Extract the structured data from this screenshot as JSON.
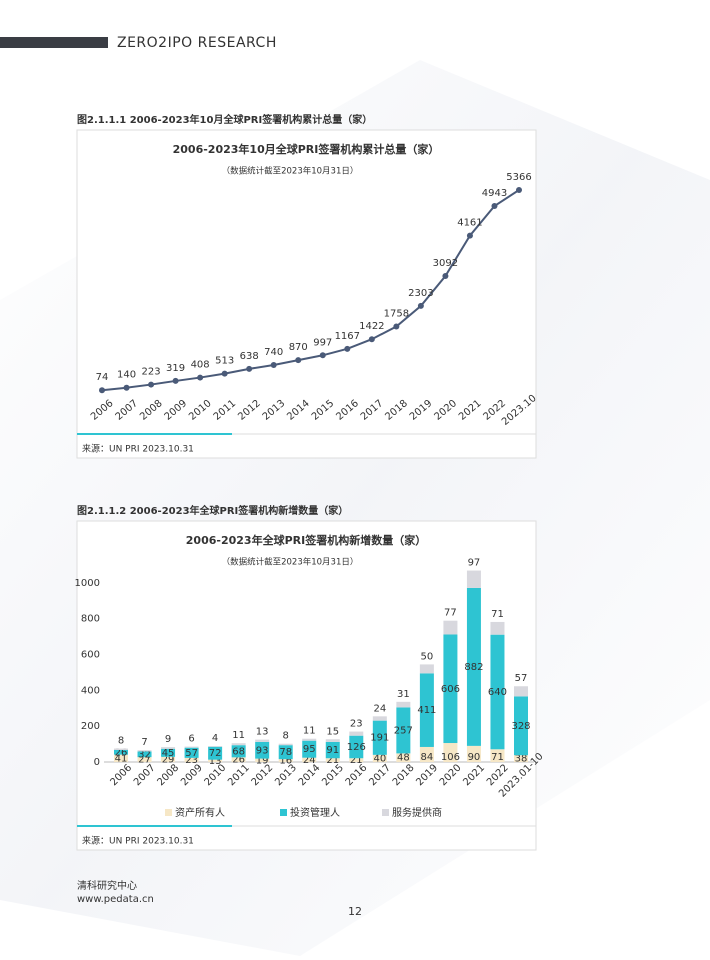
{
  "header": {
    "title": "ZERO2IPO RESEARCH"
  },
  "chart_data": [
    {
      "type": "line",
      "caption": "图2.1.1.1 2006-2023年10月全球PRI签署机构累计总量（家）",
      "title": "2006-2023年10月全球PRI签署机构累计总量（家）",
      "subtitle": "（数据统计截至2023年10月31日）",
      "categories": [
        "2006",
        "2007",
        "2008",
        "2009",
        "2010",
        "2011",
        "2012",
        "2013",
        "2014",
        "2015",
        "2016",
        "2017",
        "2018",
        "2019",
        "2020",
        "2021",
        "2022",
        "2023.10"
      ],
      "values": [
        74,
        140,
        223,
        319,
        408,
        513,
        638,
        740,
        870,
        997,
        1167,
        1422,
        1758,
        2303,
        3092,
        4161,
        4943,
        5366
      ],
      "color": "#4a5a78",
      "source": "来源：UN PRI 2023.10.31"
    },
    {
      "type": "bar",
      "stacked": true,
      "caption": "图2.1.1.2 2006-2023年全球PRI签署机构新增数量（家）",
      "title": "2006-2023年全球PRI签署机构新增数量（家）",
      "subtitle": "（数据统计截至2023年10月31日）",
      "categories": [
        "2006",
        "2007",
        "2008",
        "2009",
        "2010",
        "2011",
        "2012",
        "2013",
        "2014",
        "2015",
        "2016",
        "2017",
        "2018",
        "2019",
        "2020",
        "2021",
        "2022",
        "2023.01-10"
      ],
      "series": [
        {
          "name": "资产所有人",
          "color": "#f6e7c6",
          "values": [
            41,
            27,
            29,
            23,
            13,
            26,
            19,
            16,
            24,
            21,
            21,
            40,
            48,
            84,
            106,
            90,
            71,
            38
          ]
        },
        {
          "name": "投资管理人",
          "color": "#2ec4d2",
          "values": [
            26,
            32,
            45,
            57,
            72,
            68,
            93,
            78,
            95,
            91,
            126,
            191,
            257,
            411,
            606,
            882,
            640,
            328
          ]
        },
        {
          "name": "服务提供商",
          "color": "#d8d8de",
          "values": [
            8,
            7,
            9,
            6,
            4,
            11,
            13,
            8,
            11,
            15,
            23,
            24,
            31,
            50,
            77,
            97,
            71,
            57
          ]
        }
      ],
      "ylim": [
        0,
        1100
      ],
      "yticks": [
        0,
        200,
        400,
        600,
        800,
        1000
      ],
      "source": "来源：UN PRI 2023.10.31"
    }
  ],
  "footer": {
    "org": "清科研究中心",
    "url": "www.pedata.cn",
    "page": "12"
  }
}
